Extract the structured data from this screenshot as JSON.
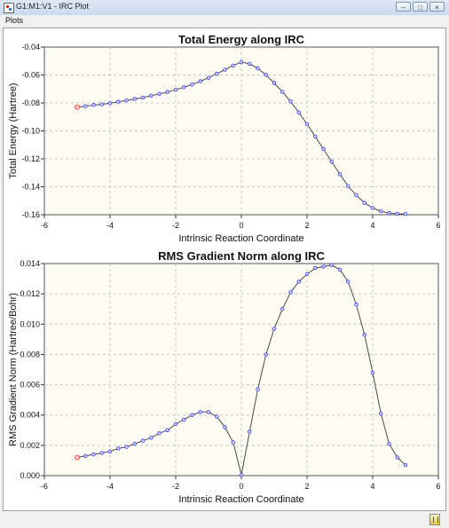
{
  "window": {
    "title": "G1:M1:V1 - IRC Plot"
  },
  "menu": {
    "items": [
      "Plots"
    ]
  },
  "colors": {
    "plot_background": "#fcfcf2",
    "grid": "#c8c8c8",
    "line": "#4a4a4a",
    "marker": "#3a3aff",
    "endpoint_marker": "#ff3333"
  },
  "chart_data": [
    {
      "type": "line",
      "title": "Total Energy along IRC",
      "xlabel": "Intrinsic Reaction Coordinate",
      "ylabel": "Total Energy (Hartree)",
      "xlim": [
        -6,
        6
      ],
      "ylim": [
        -0.16,
        -0.04
      ],
      "xticks": [
        "-6",
        "-4",
        "-2",
        "0",
        "2",
        "4",
        "6"
      ],
      "yticks": [
        "-0.16",
        "-0.14",
        "-0.12",
        "-0.10",
        "-0.08",
        "-0.06",
        "-0.04"
      ],
      "grid": true,
      "x": [
        -5.0,
        -4.75,
        -4.5,
        -4.25,
        -4.0,
        -3.75,
        -3.5,
        -3.25,
        -3.0,
        -2.75,
        -2.5,
        -2.25,
        -2.0,
        -1.75,
        -1.5,
        -1.25,
        -1.0,
        -0.75,
        -0.5,
        -0.25,
        0.0,
        0.25,
        0.5,
        0.75,
        1.0,
        1.25,
        1.5,
        1.75,
        2.0,
        2.25,
        2.5,
        2.75,
        3.0,
        3.25,
        3.5,
        3.75,
        4.0,
        4.25,
        4.5,
        4.75,
        5.0
      ],
      "y": [
        -0.083,
        -0.0823,
        -0.0815,
        -0.081,
        -0.0802,
        -0.0792,
        -0.0782,
        -0.0772,
        -0.0762,
        -0.0748,
        -0.0735,
        -0.0722,
        -0.0706,
        -0.0688,
        -0.0668,
        -0.0645,
        -0.062,
        -0.0592,
        -0.0562,
        -0.0532,
        -0.0508,
        -0.052,
        -0.0553,
        -0.06,
        -0.0658,
        -0.072,
        -0.079,
        -0.0868,
        -0.0952,
        -0.104,
        -0.113,
        -0.122,
        -0.131,
        -0.1395,
        -0.146,
        -0.1515,
        -0.1552,
        -0.1575,
        -0.1588,
        -0.1593,
        -0.1595
      ]
    },
    {
      "type": "line",
      "title": "RMS Gradient Norm along IRC",
      "xlabel": "Intrinsic Reaction Coordinate",
      "ylabel": "RMS Gradient Norm (Hartree/Bohr)",
      "xlim": [
        -6,
        6
      ],
      "ylim": [
        0,
        0.014
      ],
      "xticks": [
        "-6",
        "-4",
        "-2",
        "0",
        "2",
        "4",
        "6"
      ],
      "yticks": [
        "0.000",
        "0.002",
        "0.004",
        "0.006",
        "0.008",
        "0.010",
        "0.012",
        "0.014"
      ],
      "grid": true,
      "x": [
        -5.0,
        -4.75,
        -4.5,
        -4.25,
        -4.0,
        -3.75,
        -3.5,
        -3.25,
        -3.0,
        -2.75,
        -2.5,
        -2.25,
        -2.0,
        -1.75,
        -1.5,
        -1.25,
        -1.0,
        -0.75,
        -0.5,
        -0.25,
        0.0,
        0.25,
        0.5,
        0.75,
        1.0,
        1.25,
        1.5,
        1.75,
        2.0,
        2.25,
        2.5,
        2.75,
        3.0,
        3.25,
        3.5,
        3.75,
        4.0,
        4.25,
        4.5,
        4.75,
        5.0
      ],
      "y": [
        0.0012,
        0.0013,
        0.0014,
        0.0015,
        0.0016,
        0.0018,
        0.0019,
        0.0021,
        0.0023,
        0.0025,
        0.0028,
        0.003,
        0.0034,
        0.0037,
        0.004,
        0.0042,
        0.0042,
        0.0039,
        0.0032,
        0.0022,
        5e-05,
        0.0029,
        0.0057,
        0.008,
        0.0097,
        0.011,
        0.0121,
        0.0128,
        0.0133,
        0.0137,
        0.0138,
        0.0139,
        0.0136,
        0.0128,
        0.0113,
        0.0093,
        0.0068,
        0.0041,
        0.0021,
        0.0012,
        0.0007
      ]
    }
  ]
}
